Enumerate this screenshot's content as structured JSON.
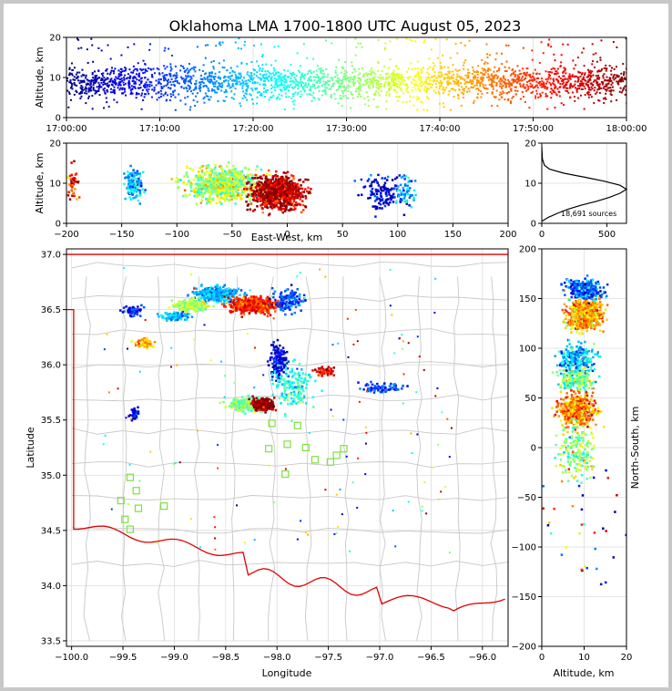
{
  "title": "Oklahoma LMA 1700-1800 UTC August 05, 2023",
  "colors": {
    "source_colormap": "jet",
    "counties": "#c8c8c8",
    "state_border": "#e00000",
    "stations": "#7ee040",
    "grid": "#dddddd"
  },
  "chart_data": [
    {
      "panel": "time-altitude",
      "type": "scatter",
      "xlabel": "",
      "ylabel": "Altitude, km",
      "x_ticks": [
        "17:00:00",
        "17:10:00",
        "17:20:00",
        "17:30:00",
        "17:40:00",
        "17:50:00",
        "18:00:00"
      ],
      "ylim": [
        0,
        20
      ],
      "y_ticks": [
        0,
        10,
        20
      ],
      "color_by": "time",
      "grid": true
    },
    {
      "panel": "east-west-altitude",
      "type": "scatter",
      "xlabel": "East-West, km",
      "ylabel": "Altitude, km",
      "xlim": [
        -200,
        200
      ],
      "x_ticks": [
        -200,
        -150,
        -100,
        -50,
        0,
        50,
        100,
        150,
        200
      ],
      "ylim": [
        0,
        20
      ],
      "y_ticks": [
        0,
        10,
        20
      ],
      "color_by": "time",
      "clusters": [
        {
          "x": -60,
          "spread_x": 30,
          "z": 10,
          "t": 0.55
        },
        {
          "x": -10,
          "spread_x": 22,
          "z": 8,
          "t": 0.95
        },
        {
          "x": 85,
          "spread_x": 18,
          "z": 8,
          "t": 0.1
        },
        {
          "x": 105,
          "spread_x": 8,
          "z": 8,
          "t": 0.3
        },
        {
          "x": -140,
          "spread_x": 8,
          "z": 10,
          "t": 0.3
        },
        {
          "x": -195,
          "spread_x": 5,
          "z": 10,
          "t": 0.85
        }
      ],
      "grid": true
    },
    {
      "panel": "altitude-histogram",
      "type": "line",
      "xlim": [
        0,
        650
      ],
      "x_ticks": [
        0,
        500
      ],
      "ylim": [
        0,
        20
      ],
      "y_ticks": [
        0,
        10,
        20
      ],
      "annotation": "18,691 sources",
      "x": [
        0,
        50,
        120,
        200,
        300,
        420,
        520,
        600,
        650,
        600,
        480,
        330,
        170,
        60,
        20,
        5,
        0
      ],
      "y": [
        0.5,
        1.5,
        2.5,
        3.5,
        4.5,
        5.5,
        6.5,
        7.5,
        8.5,
        9.5,
        10.5,
        11.5,
        12.5,
        13.5,
        14.5,
        16,
        19
      ],
      "grid": true
    },
    {
      "panel": "plan-view-map",
      "type": "scatter",
      "xlabel": "Longitude",
      "ylabel": "Latitude",
      "xlim": [
        -100.05,
        -95.75
      ],
      "ylim": [
        33.45,
        37.05
      ],
      "x_ticks": [
        -100.0,
        -99.5,
        -99.0,
        -98.5,
        -98.0,
        -97.5,
        -97.0,
        -96.5,
        -96.0
      ],
      "y_ticks": [
        33.5,
        34.0,
        34.5,
        35.0,
        35.5,
        36.0,
        36.5,
        37.0
      ],
      "tick_labels_x": [
        "−100.0",
        "−99.5",
        "−99.0",
        "−98.5",
        "−98.0",
        "−97.5",
        "−97.0",
        "−96.5",
        "−96.0"
      ],
      "tick_labels_y": [
        "33.5",
        "34.0",
        "34.5",
        "35.0",
        "35.5",
        "36.0",
        "36.5",
        "37.0"
      ],
      "stations": [
        {
          "lon": -98.05,
          "lat": 35.47
        },
        {
          "lon": -97.8,
          "lat": 35.45
        },
        {
          "lon": -97.9,
          "lat": 35.28
        },
        {
          "lon": -98.08,
          "lat": 35.24
        },
        {
          "lon": -97.72,
          "lat": 35.25
        },
        {
          "lon": -97.63,
          "lat": 35.14
        },
        {
          "lon": -97.48,
          "lat": 35.12
        },
        {
          "lon": -97.42,
          "lat": 35.18
        },
        {
          "lon": -97.35,
          "lat": 35.24
        },
        {
          "lon": -97.92,
          "lat": 35.01
        },
        {
          "lon": -99.43,
          "lat": 34.98
        },
        {
          "lon": -99.37,
          "lat": 34.86
        },
        {
          "lon": -99.52,
          "lat": 34.77
        },
        {
          "lon": -99.35,
          "lat": 34.7
        },
        {
          "lon": -99.1,
          "lat": 34.72
        },
        {
          "lon": -99.48,
          "lat": 34.6
        },
        {
          "lon": -99.43,
          "lat": 34.51
        }
      ],
      "clusters": [
        {
          "lon": -98.6,
          "lat": 36.65,
          "slon": 0.2,
          "slat": 0.06,
          "t": 0.3
        },
        {
          "lon": -98.25,
          "lat": 36.55,
          "slon": 0.22,
          "slat": 0.07,
          "t": 0.85
        },
        {
          "lon": -98.85,
          "lat": 36.55,
          "slon": 0.15,
          "slat": 0.05,
          "t": 0.55
        },
        {
          "lon": -97.9,
          "lat": 36.6,
          "slon": 0.15,
          "slat": 0.1,
          "t": 0.2
        },
        {
          "lon": -99.4,
          "lat": 36.5,
          "slon": 0.1,
          "slat": 0.05,
          "t": 0.15
        },
        {
          "lon": -99.0,
          "lat": 36.45,
          "slon": 0.15,
          "slat": 0.04,
          "t": 0.3
        },
        {
          "lon": -99.3,
          "lat": 36.2,
          "slon": 0.1,
          "slat": 0.04,
          "t": 0.7
        },
        {
          "lon": -98.0,
          "lat": 36.05,
          "slon": 0.08,
          "slat": 0.15,
          "t": 0.1
        },
        {
          "lon": -97.55,
          "lat": 35.95,
          "slon": 0.1,
          "slat": 0.04,
          "t": 0.9
        },
        {
          "lon": -98.3,
          "lat": 35.65,
          "slon": 0.18,
          "slat": 0.06,
          "t": 0.5
        },
        {
          "lon": -98.15,
          "lat": 35.65,
          "slon": 0.1,
          "slat": 0.05,
          "t": 0.98
        },
        {
          "lon": -97.0,
          "lat": 35.8,
          "slon": 0.25,
          "slat": 0.04,
          "t": 0.2
        },
        {
          "lon": -99.4,
          "lat": 35.55,
          "slon": 0.05,
          "slat": 0.06,
          "t": 0.1
        },
        {
          "lon": -97.85,
          "lat": 35.8,
          "slon": 0.2,
          "slat": 0.2,
          "t": 0.4
        }
      ],
      "grid": true
    },
    {
      "panel": "north-south-altitude",
      "type": "scatter",
      "xlabel": "Altitude, km",
      "ylabel": "North-South, km",
      "xlim": [
        0,
        20
      ],
      "x_ticks": [
        0,
        10,
        20
      ],
      "ylim": [
        -200,
        200
      ],
      "y_ticks": [
        -200,
        -150,
        -100,
        -50,
        0,
        50,
        100,
        150,
        200
      ],
      "color_by": "time",
      "clusters": [
        {
          "y": 135,
          "spread_y": 15,
          "z": 10,
          "t": 0.7
        },
        {
          "y": 160,
          "spread_y": 10,
          "z": 10,
          "t": 0.2
        },
        {
          "y": 90,
          "spread_y": 15,
          "z": 8,
          "t": 0.3
        },
        {
          "y": 40,
          "spread_y": 15,
          "z": 8,
          "t": 0.75
        },
        {
          "y": 70,
          "spread_y": 10,
          "z": 8,
          "t": 0.5
        },
        {
          "y": 0,
          "spread_y": 30,
          "z": 8,
          "t": 0.5
        }
      ],
      "grid": true
    }
  ]
}
